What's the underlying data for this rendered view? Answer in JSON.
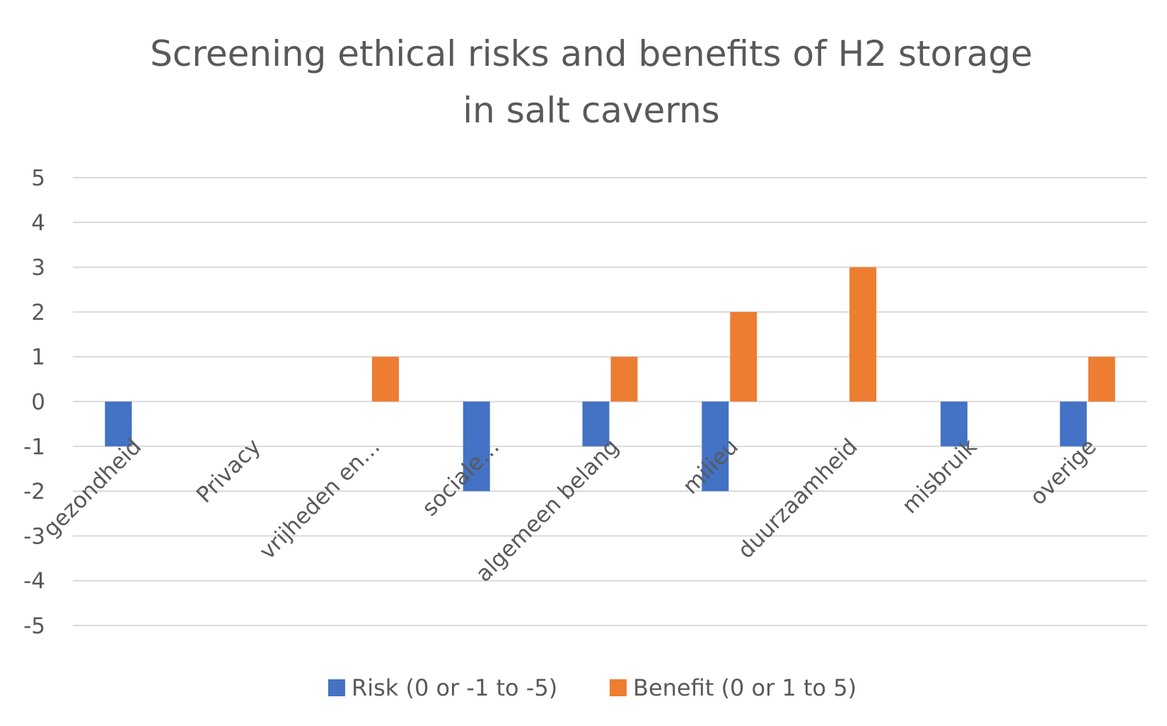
{
  "chart_data": {
    "type": "bar",
    "title_lines": [
      "Screening ethical risks and benefits of H2 storage",
      "in salt caverns"
    ],
    "categories": [
      "gezondheid",
      "Privacy",
      "vrijheden en…",
      "sociale…",
      "algemeen belang",
      "milieu",
      "duurzaamheid",
      "misbruik",
      "overige"
    ],
    "series": [
      {
        "name": "Risk (0 or -1 to -5)",
        "color": "#4472C4",
        "values": [
          -1,
          0,
          0,
          -2,
          -1,
          -2,
          0,
          -1,
          -1
        ]
      },
      {
        "name": "Benefit (0 or 1 to 5)",
        "color": "#ED7D31",
        "values": [
          0,
          0,
          1,
          0,
          1,
          2,
          3,
          0,
          1
        ]
      }
    ],
    "yticks": [
      5,
      4,
      3,
      2,
      1,
      0,
      -1,
      -2,
      -3,
      -4,
      -5
    ],
    "ylim": [
      -5,
      5
    ],
    "grid": true,
    "legend_position": "bottom",
    "xlabel": "",
    "ylabel": ""
  }
}
